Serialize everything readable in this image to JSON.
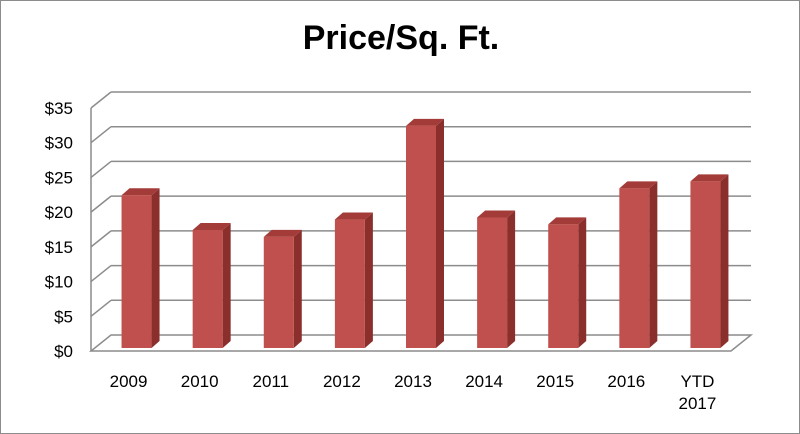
{
  "chart_data": {
    "type": "bar",
    "title": "Price/Sq. Ft.",
    "xlabel": "",
    "ylabel": "",
    "categories": [
      "2009",
      "2010",
      "2011",
      "2012",
      "2013",
      "2014",
      "2015",
      "2016",
      "YTD 2017"
    ],
    "values": [
      22,
      17,
      16,
      18.5,
      32,
      18.8,
      17.8,
      23,
      24
    ],
    "ylim": [
      0,
      35
    ],
    "y_ticks": [
      "$0",
      "$5",
      "$10",
      "$15",
      "$20",
      "$25",
      "$30",
      "$35"
    ],
    "grid": true,
    "legend": "none",
    "bar_style": "3d",
    "colors": {
      "bar_front": "#c0504d",
      "bar_side": "#8b2f2d",
      "bar_top": "#a33c39",
      "grid": "#8c8c8c"
    }
  }
}
